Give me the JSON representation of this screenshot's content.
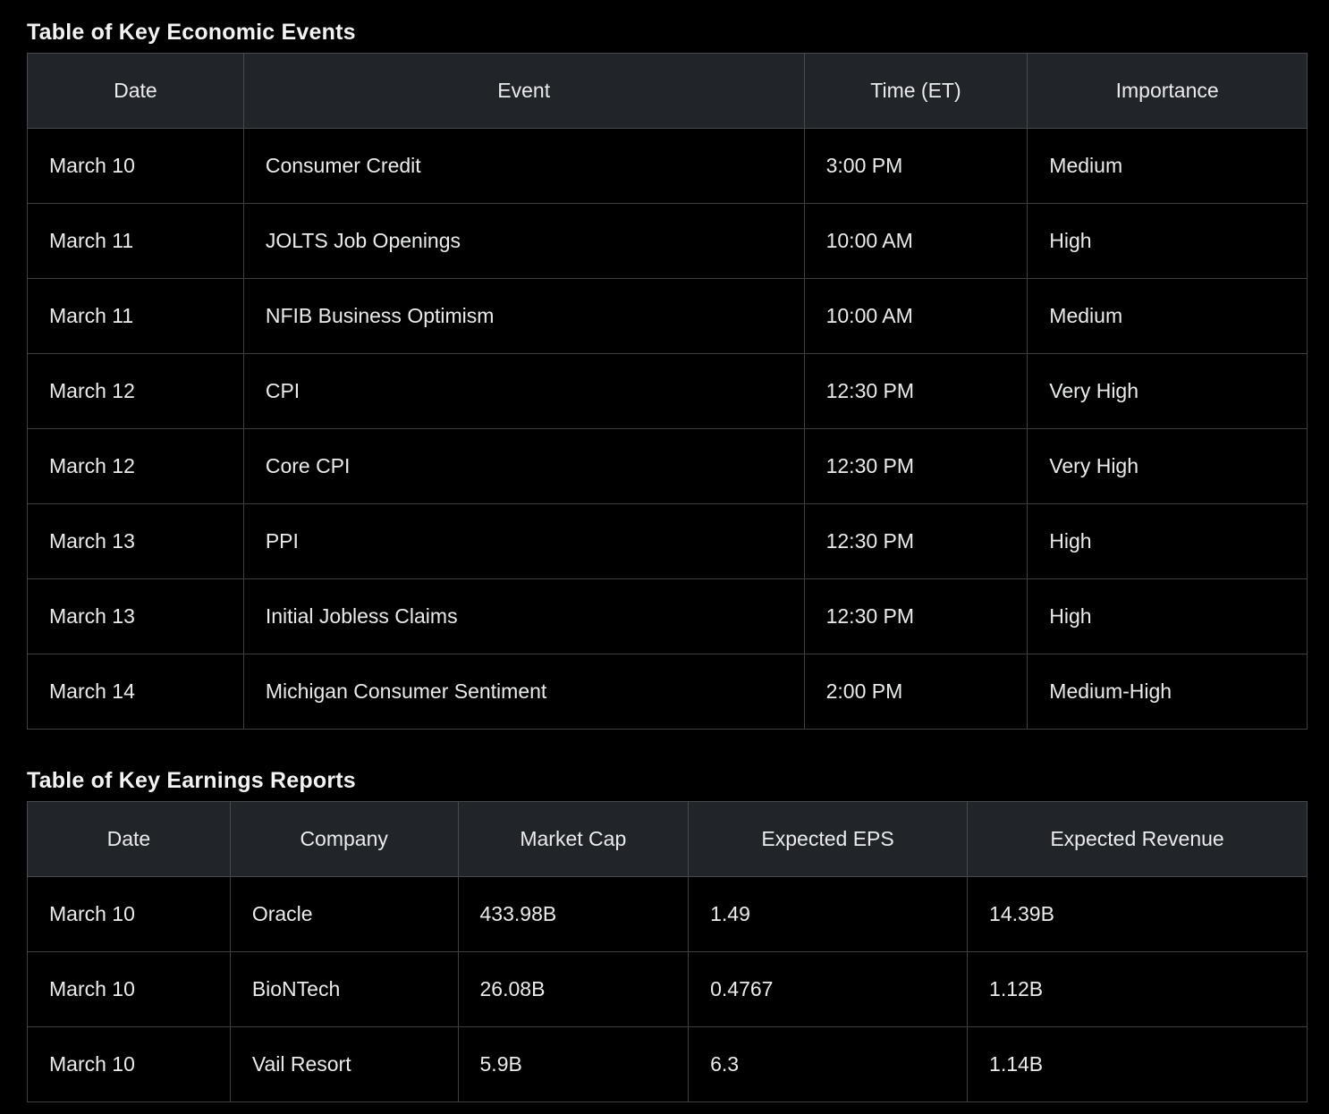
{
  "colors": {
    "page_background": "#000000",
    "table_header_background": "#212429",
    "table_row_background": "#000000",
    "table_border": "#47494d",
    "cell_text": "#e9ebed",
    "title_text": "#f2f3f4"
  },
  "economic_events": {
    "title": "Table of Key Economic Events",
    "columns": [
      "Date",
      "Event",
      "Time (ET)",
      "Importance"
    ],
    "rows": [
      [
        "March 10",
        "Consumer Credit",
        "3:00 PM",
        "Medium"
      ],
      [
        "March 11",
        "JOLTS Job Openings",
        "10:00 AM",
        "High"
      ],
      [
        "March 11",
        "NFIB Business Optimism",
        "10:00 AM",
        "Medium"
      ],
      [
        "March 12",
        "CPI",
        "12:30 PM",
        "Very High"
      ],
      [
        "March 12",
        "Core CPI",
        "12:30 PM",
        "Very High"
      ],
      [
        "March 13",
        "PPI",
        "12:30 PM",
        "High"
      ],
      [
        "March 13",
        "Initial Jobless Claims",
        "12:30 PM",
        "High"
      ],
      [
        "March 14",
        "Michigan Consumer Sentiment",
        "2:00 PM",
        "Medium-High"
      ]
    ]
  },
  "earnings_reports": {
    "title": "Table of Key Earnings Reports",
    "columns": [
      "Date",
      "Company",
      "Market Cap",
      "Expected EPS",
      "Expected Revenue"
    ],
    "rows": [
      [
        "March 10",
        "Oracle",
        "433.98B",
        "1.49",
        "14.39B"
      ],
      [
        "March 10",
        "BioNTech",
        "26.08B",
        "0.4767",
        "1.12B"
      ],
      [
        "March 10",
        "Vail Resort",
        "5.9B",
        "6.3",
        "1.14B"
      ]
    ]
  }
}
